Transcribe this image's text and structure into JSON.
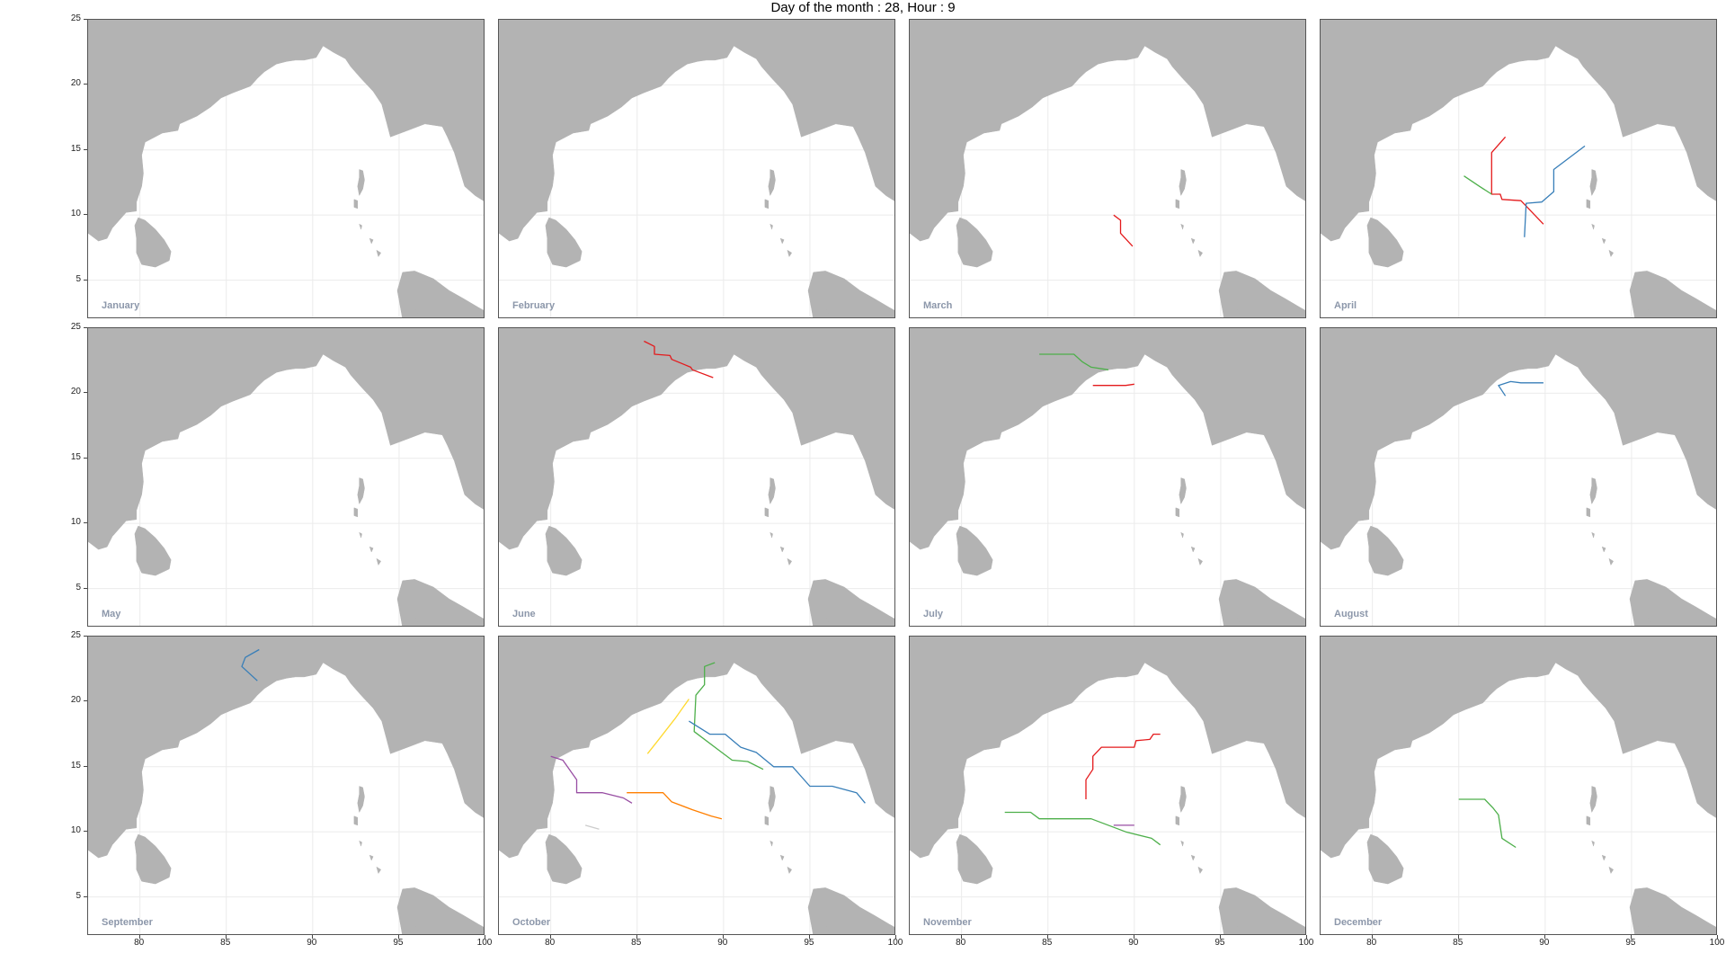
{
  "title": "Day of the month : 28, Hour : 9",
  "map": {
    "land_color": "#b3b3b3",
    "water_color": "#ffffff",
    "grid_color": "#ebebeb",
    "lon_range": [
      77,
      100
    ],
    "lat_range": [
      2,
      25
    ]
  },
  "axes": {
    "x_ticks": [
      "80",
      "85",
      "90",
      "95",
      "100"
    ],
    "y_ticks": [
      "25",
      "20",
      "15",
      "10",
      "5"
    ]
  },
  "panels": [
    {
      "month": "January",
      "tracks": []
    },
    {
      "month": "February",
      "tracks": []
    },
    {
      "month": "March",
      "tracks": [
        {
          "color": "#e41a1c",
          "points": [
            [
              88.8,
              10
            ],
            [
              89.2,
              9.6
            ],
            [
              89.2,
              8.6
            ],
            [
              89.9,
              7.6
            ]
          ]
        }
      ]
    },
    {
      "month": "April",
      "tracks": [
        {
          "color": "#e41a1c",
          "points": [
            [
              87.7,
              16
            ],
            [
              86.9,
              14.8
            ],
            [
              86.9,
              11.6
            ],
            [
              87.4,
              11.6
            ],
            [
              87.5,
              11.2
            ],
            [
              88.6,
              11.1
            ],
            [
              89.9,
              9.3
            ]
          ]
        },
        {
          "color": "#377eb8",
          "points": [
            [
              92.3,
              15.3
            ],
            [
              90.5,
              13.5
            ],
            [
              90.5,
              11.8
            ],
            [
              89.8,
              11
            ],
            [
              88.9,
              10.9
            ],
            [
              88.8,
              8.3
            ]
          ]
        },
        {
          "color": "#4daf4a",
          "points": [
            [
              85.3,
              13
            ],
            [
              86.2,
              12.2
            ],
            [
              86.9,
              11.6
            ]
          ]
        }
      ]
    },
    {
      "month": "May",
      "tracks": []
    },
    {
      "month": "June",
      "tracks": [
        {
          "color": "#e41a1c",
          "points": [
            [
              85.4,
              24
            ],
            [
              86,
              23.6
            ],
            [
              86,
              23
            ],
            [
              86.9,
              22.9
            ],
            [
              87,
              22.6
            ],
            [
              88.1,
              22
            ],
            [
              88.2,
              21.8
            ],
            [
              89.4,
              21.2
            ]
          ]
        }
      ]
    },
    {
      "month": "July",
      "tracks": [
        {
          "color": "#4daf4a",
          "points": [
            [
              84.5,
              23
            ],
            [
              86.5,
              23
            ],
            [
              87,
              22.4
            ],
            [
              87.5,
              22
            ],
            [
              88.5,
              21.8
            ]
          ]
        },
        {
          "color": "#e41a1c",
          "points": [
            [
              87.6,
              20.6
            ],
            [
              89.5,
              20.6
            ],
            [
              90,
              20.7
            ]
          ]
        }
      ]
    },
    {
      "month": "August",
      "tracks": [
        {
          "color": "#377eb8",
          "points": [
            [
              87.7,
              19.8
            ],
            [
              87.3,
              20.6
            ],
            [
              88,
              20.9
            ],
            [
              88.6,
              20.8
            ],
            [
              89.9,
              20.8
            ]
          ]
        }
      ]
    },
    {
      "month": "September",
      "tracks": [
        {
          "color": "#377eb8",
          "points": [
            [
              86.9,
              24
            ],
            [
              86.1,
              23.4
            ],
            [
              85.9,
              22.7
            ],
            [
              86.8,
              21.6
            ]
          ]
        }
      ]
    },
    {
      "month": "October",
      "tracks": [
        {
          "color": "#4daf4a",
          "points": [
            [
              89.5,
              23
            ],
            [
              88.9,
              22.7
            ],
            [
              88.9,
              21.3
            ],
            [
              88.4,
              20.5
            ],
            [
              88.3,
              17.7
            ],
            [
              89.6,
              16.4
            ],
            [
              90.5,
              15.5
            ],
            [
              91.4,
              15.4
            ],
            [
              92.3,
              14.8
            ]
          ]
        },
        {
          "color": "#377eb8",
          "points": [
            [
              88,
              18.5
            ],
            [
              89.2,
              17.5
            ],
            [
              90.1,
              17.5
            ],
            [
              91,
              16.5
            ],
            [
              91.9,
              16.1
            ],
            [
              92.9,
              15
            ],
            [
              94,
              15
            ],
            [
              95,
              13.5
            ],
            [
              96.3,
              13.5
            ],
            [
              97.7,
              13
            ],
            [
              98.2,
              12.2
            ]
          ]
        },
        {
          "color": "#ffd92f",
          "points": [
            [
              88,
              20.2
            ],
            [
              87.2,
              18.7
            ],
            [
              86.2,
              17
            ],
            [
              85.6,
              16
            ]
          ]
        },
        {
          "color": "#984ea3",
          "points": [
            [
              80,
              15.8
            ],
            [
              80.7,
              15.5
            ],
            [
              81.5,
              14
            ],
            [
              81.5,
              13
            ],
            [
              83,
              13
            ],
            [
              84.2,
              12.6
            ],
            [
              84.7,
              12.2
            ]
          ]
        },
        {
          "color": "#ff7f00",
          "points": [
            [
              84.4,
              13
            ],
            [
              86.5,
              13
            ],
            [
              87,
              12.3
            ],
            [
              88.2,
              11.7
            ],
            [
              89.3,
              11.2
            ],
            [
              89.9,
              11
            ]
          ]
        },
        {
          "color": "#cccccc",
          "points": [
            [
              82,
              10.5
            ],
            [
              82.8,
              10.2
            ]
          ]
        }
      ]
    },
    {
      "month": "November",
      "tracks": [
        {
          "color": "#e41a1c",
          "points": [
            [
              91.5,
              17.5
            ],
            [
              91.1,
              17.5
            ],
            [
              90.9,
              17.1
            ],
            [
              90.1,
              17
            ],
            [
              90,
              16.5
            ],
            [
              88.1,
              16.5
            ],
            [
              87.6,
              15.8
            ],
            [
              87.6,
              14.8
            ],
            [
              87.2,
              14
            ],
            [
              87.2,
              12.5
            ]
          ]
        },
        {
          "color": "#4daf4a",
          "points": [
            [
              82.5,
              11.5
            ],
            [
              84,
              11.5
            ],
            [
              84.5,
              11
            ],
            [
              87.5,
              11
            ],
            [
              89.5,
              10
            ],
            [
              91,
              9.5
            ],
            [
              91.5,
              9
            ]
          ]
        },
        {
          "color": "#984ea3",
          "points": [
            [
              88.8,
              10.5
            ],
            [
              90,
              10.5
            ]
          ]
        }
      ]
    },
    {
      "month": "December",
      "tracks": [
        {
          "color": "#4daf4a",
          "points": [
            [
              85,
              12.5
            ],
            [
              86.5,
              12.5
            ],
            [
              87,
              11.8
            ],
            [
              87.3,
              11.3
            ],
            [
              87.5,
              9.5
            ],
            [
              88.3,
              8.8
            ]
          ]
        }
      ]
    }
  ]
}
